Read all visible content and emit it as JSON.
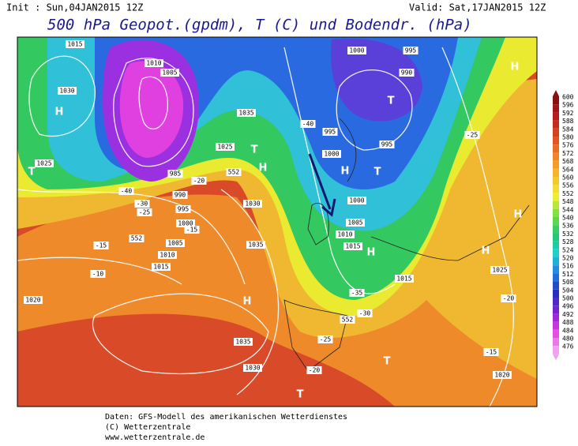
{
  "header": {
    "init": "Init : Sun,04JAN2015 12Z",
    "valid": "Valid: Sat,17JAN2015 12Z",
    "title": "500 hPa Geopot.(gpdm), T (C) und Bodendr. (hPa)"
  },
  "map": {
    "labels": [
      "1015",
      "1010",
      "1005",
      "1030",
      "H",
      "1025",
      "T",
      "985",
      "990",
      "995",
      "1000",
      "1005",
      "1010",
      "1015",
      "552",
      "1035",
      "1025",
      "T",
      "H",
      "552",
      "1030",
      "1035",
      "H",
      "1035",
      "1030",
      "1020",
      "1000",
      "995",
      "990",
      "T",
      "H",
      "995",
      "1000",
      "995",
      "H",
      "T",
      "1000",
      "1005",
      "1010",
      "1015",
      "H",
      "1015",
      "552",
      "T",
      "T",
      "H",
      "H",
      "1025",
      "1020",
      "-40",
      "-35",
      "-30",
      "-25",
      "-20",
      "-15",
      "-20",
      "-25",
      "-10",
      "-15",
      "-15",
      "-20",
      "-25",
      "-30",
      "-40"
    ]
  },
  "colorbar": {
    "ticks": [
      600,
      596,
      592,
      588,
      584,
      580,
      576,
      572,
      568,
      564,
      560,
      556,
      552,
      548,
      544,
      540,
      536,
      532,
      528,
      524,
      520,
      516,
      512,
      508,
      504,
      500,
      496,
      492,
      488,
      484,
      480,
      476
    ],
    "colors": [
      "#8a1010",
      "#c02020",
      "#e05020",
      "#f08a28",
      "#f5c030",
      "#f0f030",
      "#70e040",
      "#20c870",
      "#20d0d0",
      "#2080e0",
      "#2030c0",
      "#8020d0",
      "#e040e0",
      "#f0a0f0"
    ]
  },
  "footer": {
    "lines": [
      "Daten: GFS-Modell des amerikanischen Wetterdienstes",
      "(C) Wetterzentrale",
      "www.wetterzentrale.de"
    ]
  }
}
